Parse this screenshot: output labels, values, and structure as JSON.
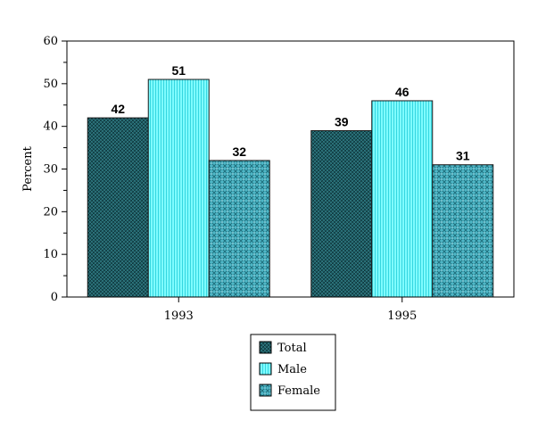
{
  "chart_data": {
    "type": "bar",
    "categories": [
      "1993",
      "1995"
    ],
    "series": [
      {
        "name": "Total",
        "values": [
          42,
          39
        ],
        "color": "#1f5f66"
      },
      {
        "name": "Male",
        "values": [
          51,
          46
        ],
        "color": "#66ffff"
      },
      {
        "name": "Female",
        "values": [
          32,
          31
        ],
        "color": "#3fa6b8"
      }
    ],
    "xlabel": "",
    "ylabel": "Percent",
    "ylim": [
      0,
      60
    ],
    "yticks": [
      0,
      10,
      20,
      30,
      40,
      50,
      60
    ],
    "grid": false,
    "legend_position": "bottom-center"
  }
}
